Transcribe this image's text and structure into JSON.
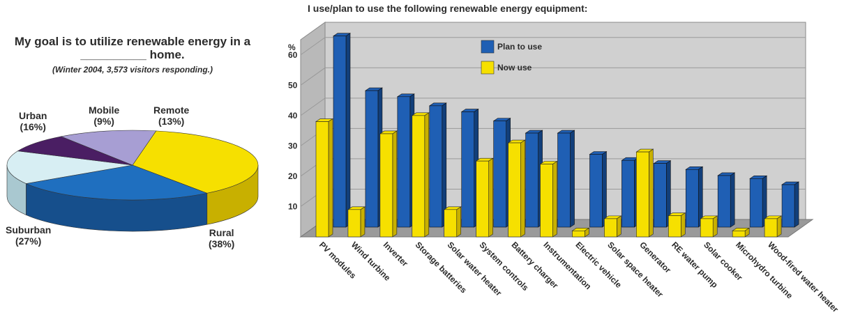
{
  "chart_data": [
    {
      "type": "pie",
      "title": "My goal is to utilize renewable energy in a __________ home.",
      "subtitle": "(Winter 2004, 3,573 visitors responding.)",
      "slices": [
        {
          "label": "Rural",
          "value": 38,
          "display": "(38%)",
          "color": "#f6e000",
          "side": "#c8b000"
        },
        {
          "label": "Suburban",
          "value": 27,
          "display": "(27%)",
          "color": "#1f6fbf",
          "side": "#164f8c"
        },
        {
          "label": "Urban",
          "value": 16,
          "display": "(16%)",
          "color": "#d7eef3",
          "side": "#a9c8d0"
        },
        {
          "label": "Mobile",
          "value": 9,
          "display": "(9%)",
          "color": "#4a1e63",
          "side": "#32124a"
        },
        {
          "label": "Remote",
          "value": 13,
          "display": "(13%)",
          "color": "#a79ed3",
          "side": "#7e76ad"
        }
      ]
    },
    {
      "type": "bar",
      "title": "I use/plan to use the following renewable energy equipment:",
      "ylabel": "%",
      "ylim": [
        0,
        65
      ],
      "yticks": [
        10,
        20,
        30,
        40,
        50,
        60
      ],
      "legend": "top-left",
      "categories": [
        "PV modules",
        "Wind turbine",
        "Inverter",
        "Storage batteries",
        "Solar water heater",
        "System controls",
        "Battery charger",
        "Instrumentation",
        "Electric vehicle",
        "Solar space heater",
        "Generator",
        "RE water pump",
        "Solar cooker",
        "Microhydro turbine",
        "Wood-fired water heater"
      ],
      "series": [
        {
          "name": "Now use",
          "color": "#f6e000",
          "side": "#c8b000",
          "values": [
            38,
            9,
            34,
            40,
            9,
            25,
            31,
            24,
            2,
            6,
            28,
            7,
            6,
            2,
            6
          ]
        },
        {
          "name": "Plan to use",
          "color": "#1f5fb4",
          "side": "#123f7a",
          "values": [
            63,
            45,
            43,
            40,
            38,
            35,
            31,
            31,
            24,
            22,
            21,
            19,
            17,
            16,
            14
          ]
        }
      ]
    }
  ]
}
